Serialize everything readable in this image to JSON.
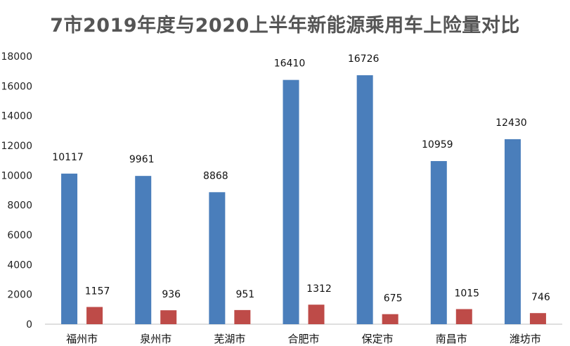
{
  "chart_data": {
    "type": "bar",
    "title": "7市2019年度与2020上半年新能源乘用车上险量对比",
    "xlabel": "",
    "ylabel": "",
    "ylim": [
      0,
      18000
    ],
    "yticks": [
      0,
      2000,
      4000,
      6000,
      8000,
      10000,
      12000,
      14000,
      16000,
      18000
    ],
    "grid": false,
    "legend": "none",
    "categories": [
      "福州市",
      "泉州市",
      "芜湖市",
      "合肥市",
      "保定市",
      "南昌市",
      "潍坊市"
    ],
    "series": [
      {
        "values": [
          10117,
          9961,
          8868,
          16410,
          16726,
          10959,
          12430
        ],
        "color": "#4A7EBB"
      },
      {
        "values": [
          1157,
          936,
          951,
          1312,
          675,
          1015,
          746
        ],
        "color": "#BE4B48"
      }
    ]
  }
}
